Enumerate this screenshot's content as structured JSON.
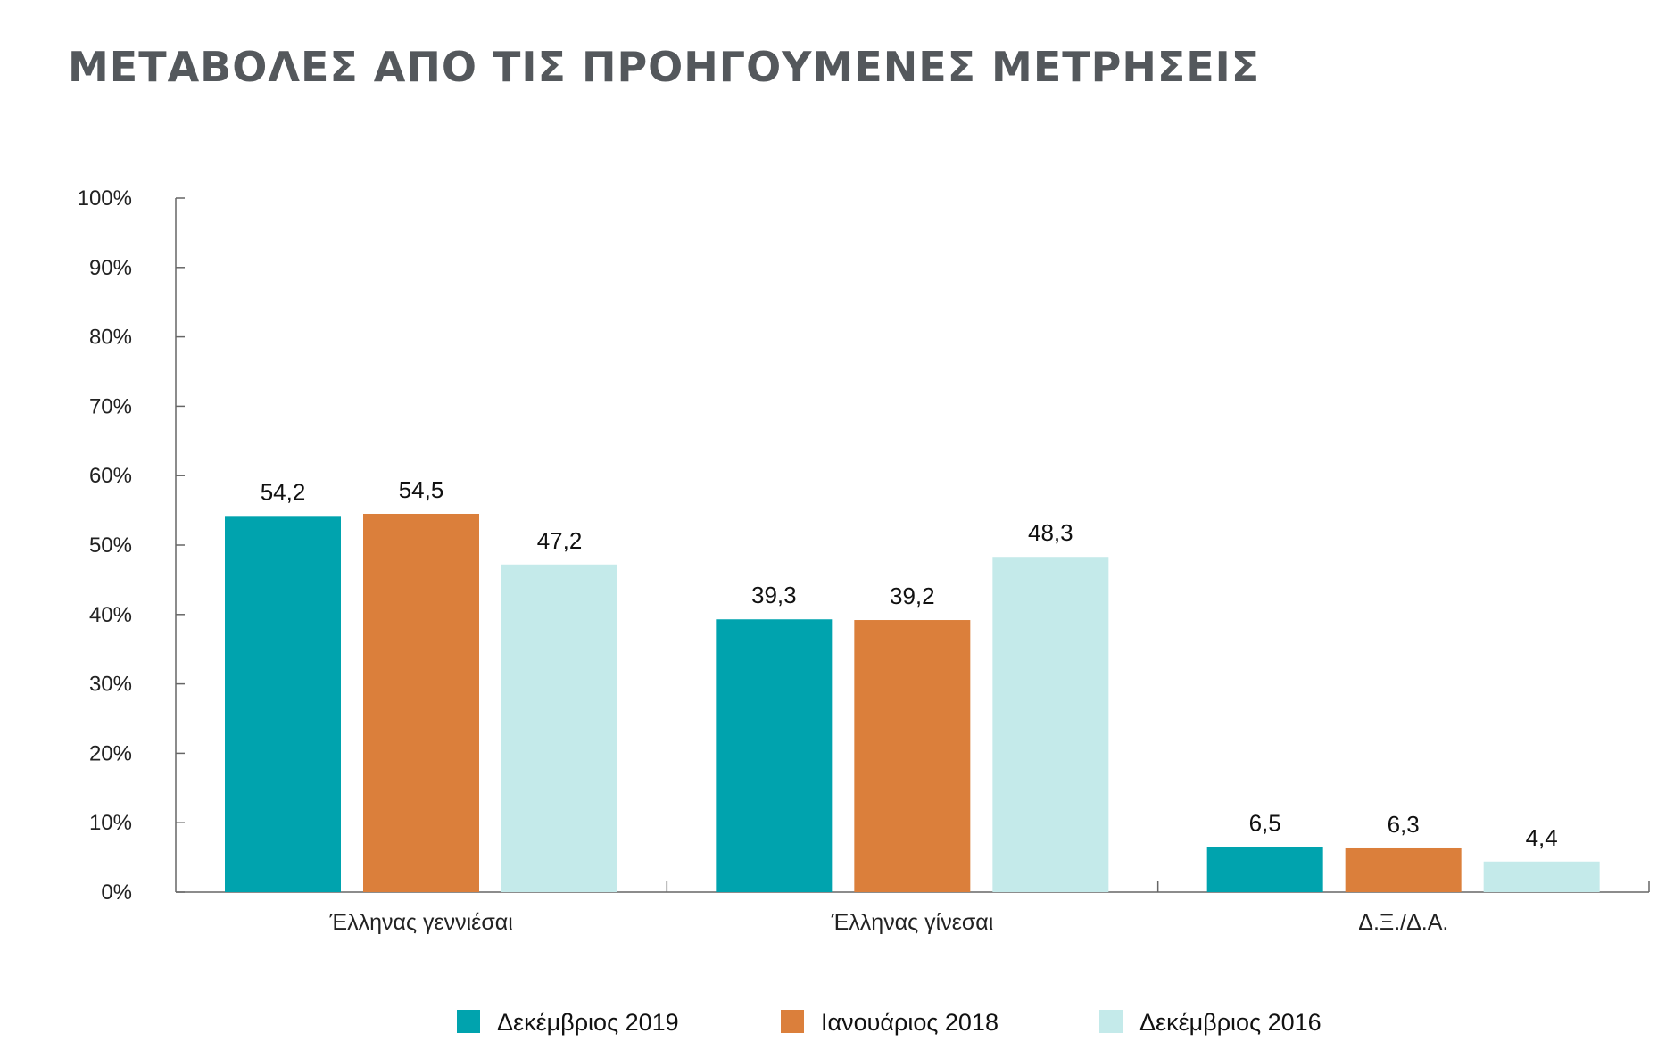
{
  "colors": {
    "title": "#54585c",
    "axis": "#666666",
    "series": [
      "#00a3ae",
      "#db7f3b",
      "#c4eaea"
    ]
  },
  "chart_data": {
    "type": "bar",
    "title": "ΜΕΤΑΒΟΛΕΣ ΑΠΟ ΤΙΣ ΠΡΟΗΓΟΥΜΕΝΕΣ ΜΕΤΡΗΣΕΙΣ",
    "categories": [
      "Έλληνας γεννιέσαι",
      "Έλληνας γίνεσαι",
      "Δ.Ξ./Δ.Α."
    ],
    "series": [
      {
        "name": "Δεκέμβριος 2019",
        "values": [
          54.2,
          39.3,
          6.5
        ],
        "labels": [
          "54,2",
          "39,3",
          "6,5"
        ]
      },
      {
        "name": "Ιανουάριος 2018",
        "values": [
          54.5,
          39.2,
          6.3
        ],
        "labels": [
          "54,5",
          "39,2",
          "6,3"
        ]
      },
      {
        "name": "Δεκέμβριος 2016",
        "values": [
          47.2,
          48.3,
          4.4
        ],
        "labels": [
          "47,2",
          "48,3",
          "4,4"
        ]
      }
    ],
    "ylim": [
      0,
      100
    ],
    "yticks": [
      "0%",
      "10%",
      "20%",
      "30%",
      "40%",
      "50%",
      "60%",
      "70%",
      "80%",
      "90%",
      "100%"
    ],
    "grid": false,
    "legend": "bottom"
  }
}
